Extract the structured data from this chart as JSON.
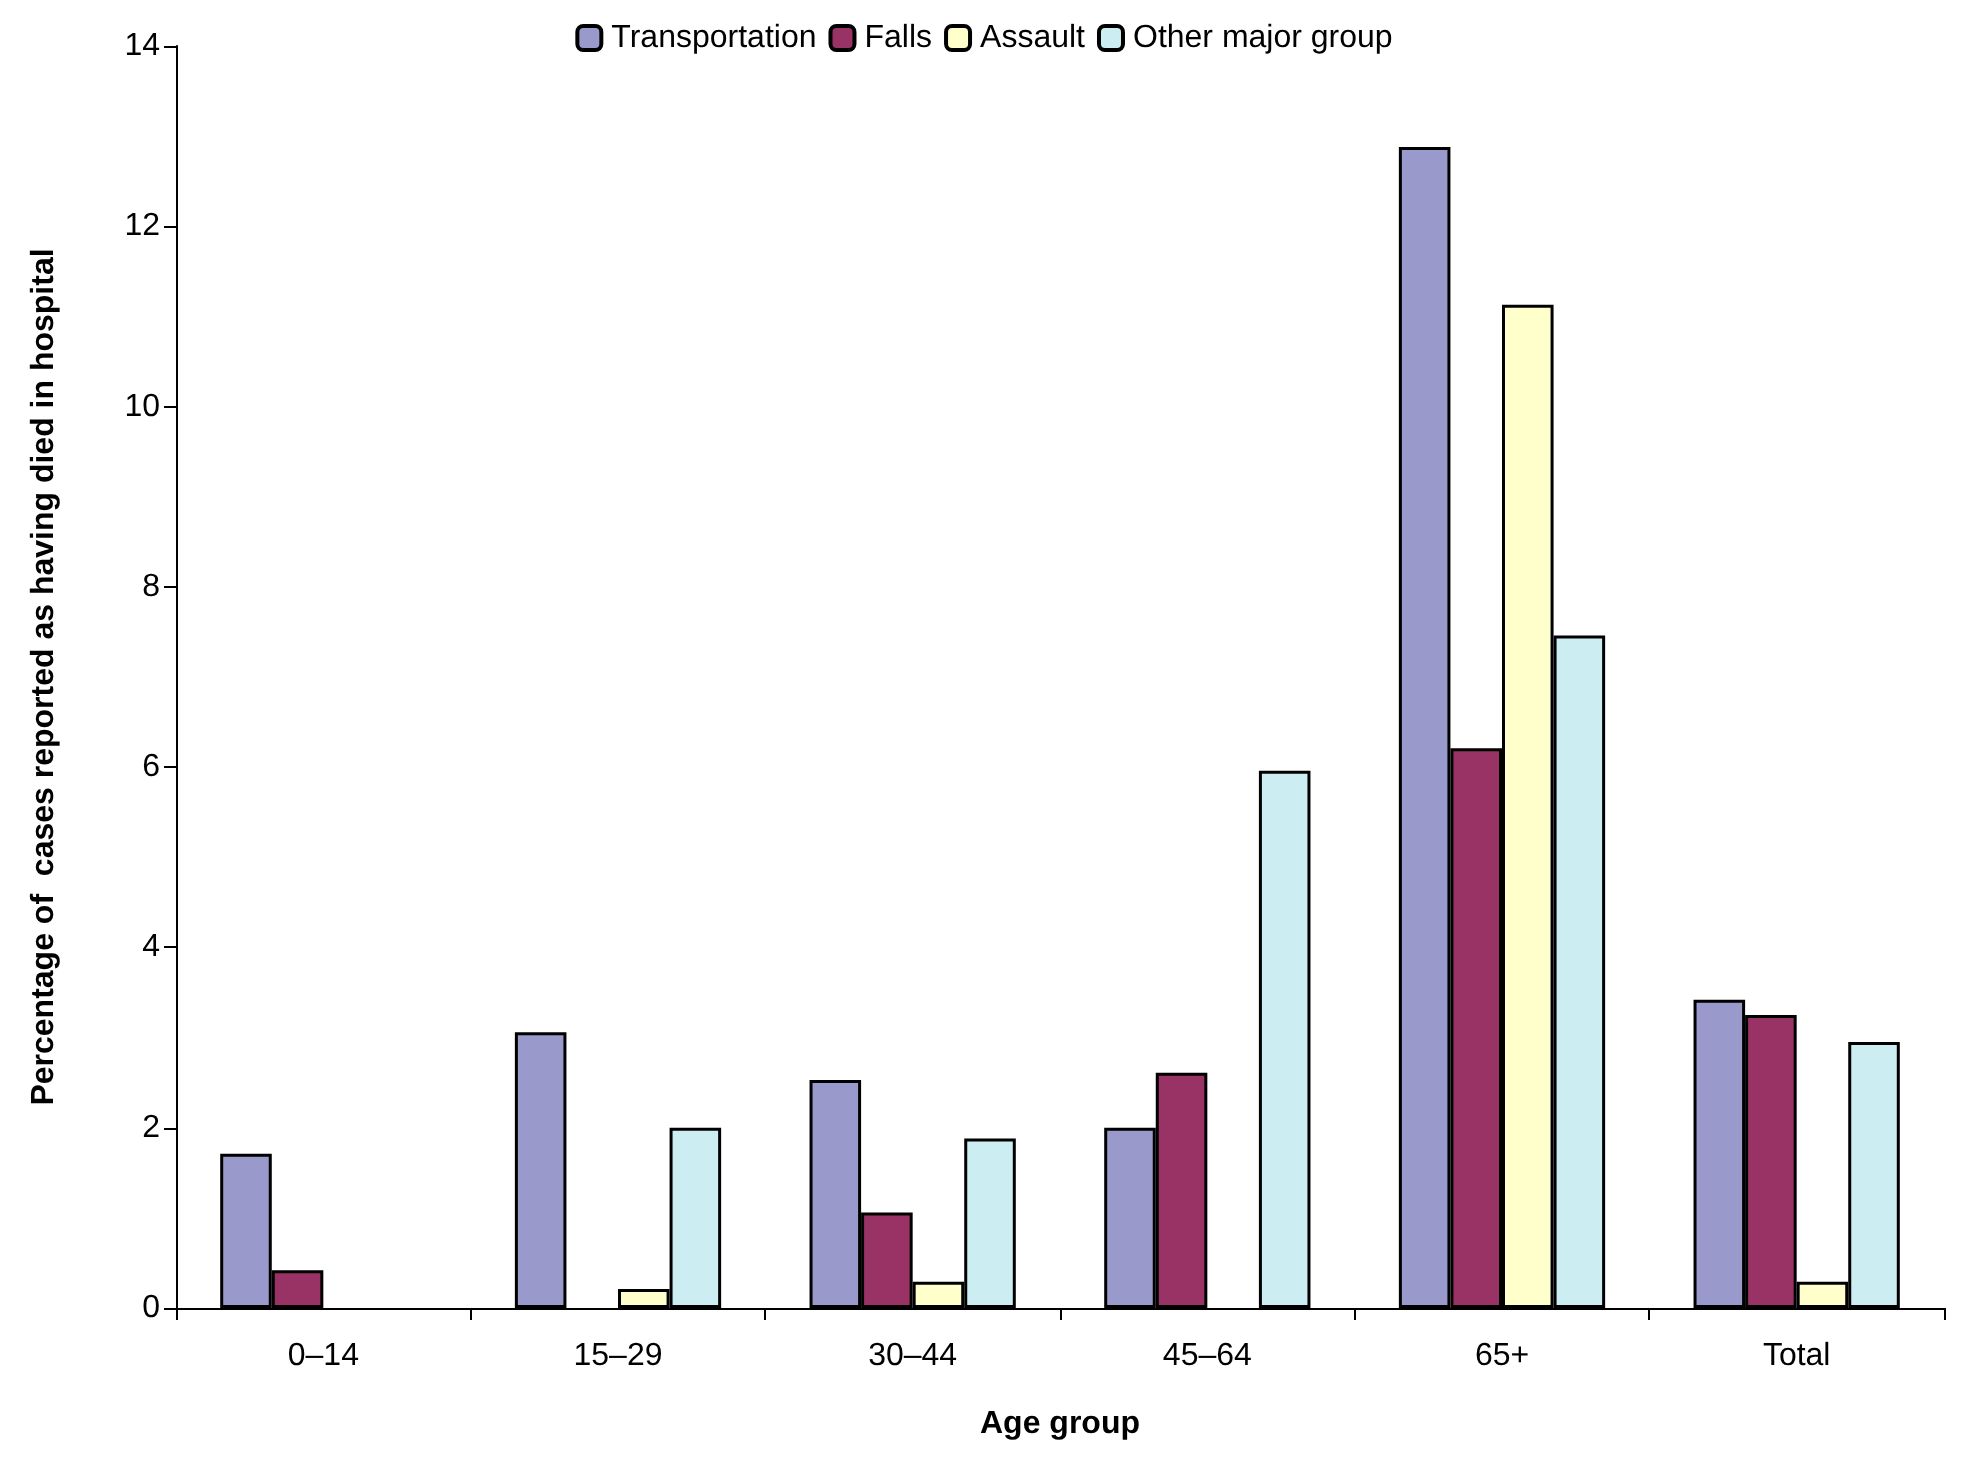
{
  "chart_data": {
    "type": "bar",
    "xlabel": "Age group",
    "ylabel": "Percentage of  cases reported as having died in hospital",
    "categories": [
      "0–14",
      "15–29",
      "30–44",
      "45–64",
      "65+",
      "Total"
    ],
    "series": [
      {
        "name": "Transportation",
        "color": "#9999cc",
        "values": [
          1.71,
          3.06,
          2.53,
          2.0,
          12.88,
          3.42
        ]
      },
      {
        "name": "Falls",
        "color": "#993366",
        "values": [
          0.42,
          null,
          1.06,
          2.61,
          6.21,
          3.25
        ]
      },
      {
        "name": "Assault",
        "color": "#ffffcc",
        "values": [
          null,
          0.21,
          0.29,
          null,
          11.13,
          0.29
        ]
      },
      {
        "name": "Other major group",
        "color": "#cceef2",
        "values": [
          null,
          2.0,
          1.88,
          5.96,
          7.46,
          2.95
        ]
      }
    ],
    "ylim": [
      0,
      14
    ],
    "yticks": [
      0,
      2,
      4,
      6,
      8,
      10,
      12,
      14
    ],
    "grid": false,
    "legend": "top"
  }
}
